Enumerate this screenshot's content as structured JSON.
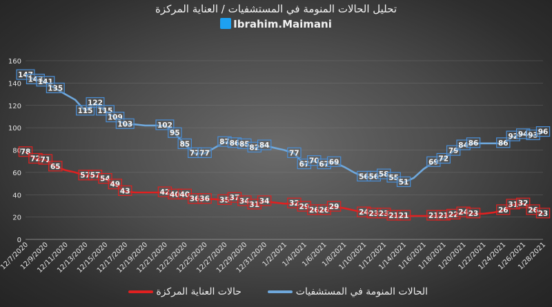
{
  "header": {
    "title": "تحليل الحالات المنومة في المستشفيات / العناية المركزة",
    "handle": "Ibrahim.Maimani",
    "handle_icon": "twitter-icon"
  },
  "chart_data": {
    "type": "line",
    "title": "تحليل الحالات المنومة في المستشفيات / العناية المركزة",
    "xlabel": "",
    "ylabel": "",
    "ylim": [
      0,
      160
    ],
    "yticks": [
      0,
      20,
      40,
      60,
      80,
      100,
      120,
      140,
      160
    ],
    "grid": true,
    "legend_position": "bottom",
    "x": [
      "12/7/2020",
      "12/8/2020",
      "12/9/2020",
      "12/10/2020",
      "12/11/2020",
      "12/12/2020",
      "12/13/2020",
      "12/14/2020",
      "12/15/2020",
      "12/16/2020",
      "12/17/2020",
      "12/18/2020",
      "12/19/2020",
      "12/20/2020",
      "12/21/2020",
      "12/22/2020",
      "12/23/2020",
      "12/24/2020",
      "12/25/2020",
      "12/26/2020",
      "12/27/2020",
      "12/28/2020",
      "12/29/2020",
      "12/30/2020",
      "12/31/2020",
      "1/1/2021",
      "1/2/2021",
      "1/3/2021",
      "1/4/2021",
      "1/5/2021",
      "1/6/2021",
      "1/7/2021",
      "1/8/2021",
      "1/9/2021",
      "1/10/2021",
      "1/11/2021",
      "1/12/2021",
      "1/13/2021",
      "1/14/2021",
      "1/15/2021",
      "1/16/2021",
      "1/17/2021",
      "1/18/2021",
      "1/19/2021",
      "1/20/2021",
      "1/21/2021",
      "1/22/2021",
      "1/23/2021",
      "1/24/2021",
      "1/25/2021",
      "1/26/2021",
      "1/27/2021",
      "1/28/2021"
    ],
    "x_tick_labels": [
      "12/7/2020",
      "12/9/2020",
      "12/11/2020",
      "12/13/2020",
      "12/15/2020",
      "12/17/2020",
      "12/19/2020",
      "12/21/2020",
      "12/23/2020",
      "12/25/2020",
      "12/27/2020",
      "12/29/2020",
      "12/31/2020",
      "1/2/2021",
      "1/4/2021",
      "1/6/2021",
      "1/8/2021",
      "1/10/2021",
      "1/12/2021",
      "1/14/2021",
      "1/16/2021",
      "1/18/2021",
      "1/20/2021",
      "1/22/2021",
      "1/24/2021",
      "1/26/2021",
      "1/28/2021"
    ],
    "series": [
      {
        "name": "الحالات المنومة في المستشفيات",
        "color": "#6fa8dc",
        "values": [
          147,
          143,
          141,
          135,
          130,
          125,
          115,
          122,
          115,
          109,
          103,
          103,
          102,
          102,
          102,
          95,
          85,
          77,
          77,
          82,
          87,
          86,
          85,
          82,
          84,
          82,
          80,
          77,
          67,
          70,
          67,
          69,
          65,
          60,
          56,
          56,
          58,
          55,
          51,
          55,
          63,
          69,
          72,
          79,
          84,
          86,
          86,
          86,
          86,
          92,
          94,
          93,
          96
        ]
      },
      {
        "name": "حالات العناية المركزة",
        "color": "#e02020",
        "values": [
          78,
          72,
          71,
          65,
          62,
          60,
          57,
          57,
          54,
          49,
          43,
          42,
          42,
          42,
          42,
          40,
          40,
          36,
          36,
          36,
          35,
          37,
          34,
          31,
          34,
          33,
          32,
          32,
          29,
          26,
          26,
          29,
          28,
          26,
          24,
          23,
          23,
          21,
          21,
          21,
          21,
          21,
          21,
          22,
          24,
          23,
          23,
          24,
          26,
          31,
          32,
          26,
          23
        ]
      }
    ],
    "data_labels": {
      "blue": [
        [
          0,
          147
        ],
        [
          1,
          143
        ],
        [
          2,
          141
        ],
        [
          3,
          135
        ],
        [
          6,
          115
        ],
        [
          7,
          122
        ],
        [
          8,
          115
        ],
        [
          9,
          109
        ],
        [
          10,
          103
        ],
        [
          14,
          102
        ],
        [
          15,
          95
        ],
        [
          16,
          85
        ],
        [
          17,
          77
        ],
        [
          18,
          77
        ],
        [
          20,
          87
        ],
        [
          21,
          86
        ],
        [
          22,
          85
        ],
        [
          23,
          82
        ],
        [
          24,
          84
        ],
        [
          27,
          77
        ],
        [
          28,
          67
        ],
        [
          29,
          70
        ],
        [
          30,
          67
        ],
        [
          31,
          69
        ],
        [
          34,
          56
        ],
        [
          35,
          56
        ],
        [
          36,
          58
        ],
        [
          37,
          55
        ],
        [
          38,
          51
        ],
        [
          41,
          69
        ],
        [
          42,
          72
        ],
        [
          43,
          79
        ],
        [
          44,
          84
        ],
        [
          45,
          86
        ],
        [
          48,
          86
        ],
        [
          49,
          92
        ],
        [
          50,
          94
        ],
        [
          51,
          93
        ],
        [
          52,
          96
        ]
      ],
      "red": [
        [
          0,
          78
        ],
        [
          1,
          72
        ],
        [
          2,
          71
        ],
        [
          3,
          65
        ],
        [
          6,
          57
        ],
        [
          7,
          57
        ],
        [
          8,
          54
        ],
        [
          9,
          49
        ],
        [
          10,
          43
        ],
        [
          14,
          42
        ],
        [
          15,
          40
        ],
        [
          16,
          40
        ],
        [
          17,
          36
        ],
        [
          18,
          36
        ],
        [
          20,
          35
        ],
        [
          21,
          37
        ],
        [
          22,
          34
        ],
        [
          23,
          31
        ],
        [
          24,
          34
        ],
        [
          27,
          32
        ],
        [
          28,
          29
        ],
        [
          29,
          26
        ],
        [
          30,
          26
        ],
        [
          31,
          29
        ],
        [
          34,
          24
        ],
        [
          35,
          23
        ],
        [
          36,
          23
        ],
        [
          37,
          21
        ],
        [
          38,
          21
        ],
        [
          41,
          21
        ],
        [
          42,
          21
        ],
        [
          43,
          22
        ],
        [
          44,
          24
        ],
        [
          45,
          23
        ],
        [
          48,
          26
        ],
        [
          49,
          31
        ],
        [
          50,
          32
        ],
        [
          51,
          26
        ],
        [
          52,
          23
        ]
      ]
    }
  }
}
